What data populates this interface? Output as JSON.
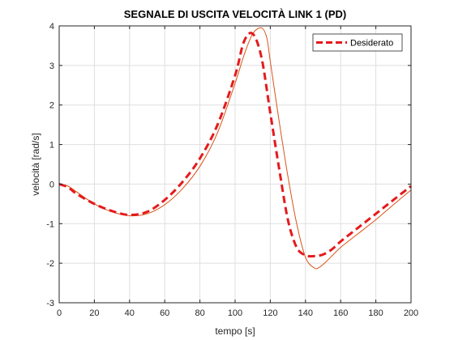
{
  "chart_data": {
    "type": "line",
    "title": "SEGNALE DI USCITA VELOCITÀ LINK 1 (PD)",
    "xlabel": "tempo [s]",
    "ylabel": "velocità [rad/s]",
    "xlim": [
      0,
      200
    ],
    "ylim": [
      -3,
      4
    ],
    "x_ticks": [
      0,
      20,
      40,
      60,
      80,
      100,
      120,
      140,
      160,
      180,
      200
    ],
    "y_ticks": [
      -3,
      -2,
      -1,
      0,
      1,
      2,
      3,
      4
    ],
    "grid": true,
    "legend_position": "top-right",
    "series": [
      {
        "name": "Desiderato",
        "color": "#e41a1c",
        "style": "dashed",
        "x": [
          0,
          5,
          10,
          20,
          30,
          40,
          50,
          60,
          70,
          80,
          90,
          100,
          105,
          110,
          115,
          120,
          125,
          130,
          135,
          140,
          145,
          150,
          155,
          160,
          170,
          180,
          190,
          200
        ],
        "y": [
          0,
          -0.08,
          -0.25,
          -0.5,
          -0.68,
          -0.78,
          -0.7,
          -0.4,
          0.05,
          0.65,
          1.5,
          2.75,
          3.6,
          3.8,
          3.2,
          1.8,
          0.4,
          -0.9,
          -1.6,
          -1.8,
          -1.82,
          -1.78,
          -1.65,
          -1.45,
          -1.1,
          -0.75,
          -0.4,
          -0.05
        ]
      },
      {
        "name": "",
        "color": "#d95319",
        "style": "solid",
        "x": [
          0,
          5,
          10,
          20,
          30,
          40,
          50,
          60,
          70,
          80,
          90,
          100,
          105,
          110,
          115,
          118,
          120,
          125,
          130,
          135,
          140,
          145,
          148,
          152,
          160,
          170,
          180,
          190,
          200
        ],
        "y": [
          0,
          -0.05,
          -0.2,
          -0.5,
          -0.7,
          -0.8,
          -0.75,
          -0.52,
          -0.12,
          0.45,
          1.3,
          2.55,
          3.25,
          3.8,
          3.95,
          3.7,
          3.1,
          1.6,
          0.2,
          -1.0,
          -1.85,
          -2.12,
          -2.1,
          -1.95,
          -1.6,
          -1.25,
          -0.9,
          -0.52,
          -0.15
        ]
      }
    ]
  }
}
